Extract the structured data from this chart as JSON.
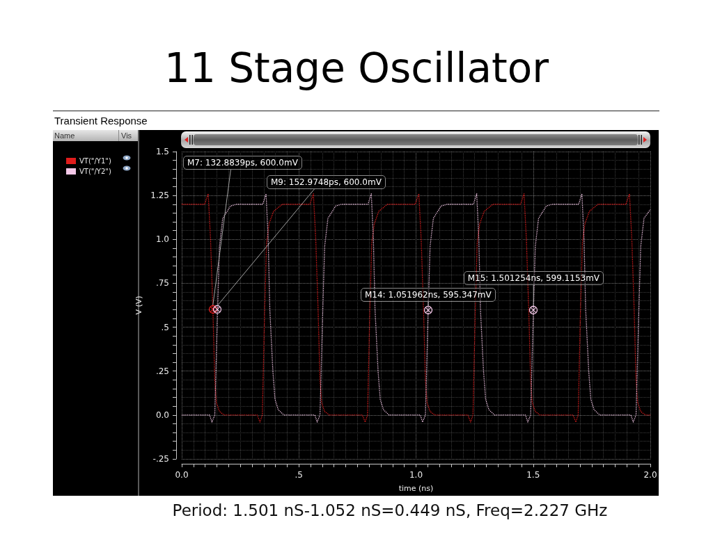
{
  "chart_data": {
    "type": "line",
    "title": "11 Stage Oscillator",
    "subtitle": "Transient Response",
    "xlabel": "time (ns)",
    "ylabel": "V (V)",
    "legend_title": "Name",
    "series": [
      {
        "name": "VT(\"/Y1\")",
        "color": "#e01c1c",
        "x": [
          0,
          0.098,
          0.113,
          0.123,
          0.133,
          0.141,
          0.148,
          0.161,
          0.181,
          0.322,
          0.334,
          0.344,
          0.354,
          0.362,
          0.373,
          0.392,
          0.429,
          0.547,
          0.562,
          0.572,
          0.582,
          0.59,
          0.597,
          0.61,
          0.63,
          0.771,
          0.783,
          0.793,
          0.803,
          0.811,
          0.822,
          0.841,
          0.878,
          0.997,
          1.012,
          1.022,
          1.032,
          1.04,
          1.047,
          1.06,
          1.08,
          1.221,
          1.233,
          1.243,
          1.253,
          1.261,
          1.272,
          1.291,
          1.328,
          1.446,
          1.461,
          1.471,
          1.481,
          1.489,
          1.496,
          1.509,
          1.529,
          1.67,
          1.682,
          1.692,
          1.702,
          1.71,
          1.721,
          1.74,
          1.777,
          1.896,
          1.911,
          1.921,
          1.931,
          1.939,
          1.946,
          1.959,
          1.979,
          2
        ],
        "values": [
          1.2,
          1.2,
          1.26,
          1,
          0.6,
          0.2,
          0.07,
          0.02,
          0,
          0,
          -0.04,
          0,
          0.6,
          0.98,
          1.09,
          1.16,
          1.2,
          1.2,
          1.26,
          1,
          0.6,
          0.2,
          0.07,
          0.02,
          0,
          0,
          -0.04,
          0,
          0.6,
          0.98,
          1.09,
          1.16,
          1.2,
          1.2,
          1.26,
          1,
          0.6,
          0.2,
          0.07,
          0.02,
          0,
          0,
          -0.04,
          0,
          0.6,
          0.98,
          1.09,
          1.16,
          1.2,
          1.2,
          1.26,
          1,
          0.6,
          0.2,
          0.07,
          0.02,
          0,
          0,
          -0.04,
          0,
          0.6,
          0.98,
          1.09,
          1.16,
          1.2,
          1.2,
          1.26,
          1,
          0.6,
          0.2,
          0.07,
          0.02,
          0,
          0
        ]
      },
      {
        "name": "VT(\"/Y2\")",
        "color": "#f4c8e8",
        "x": [
          0,
          0.119,
          0.129,
          0.141,
          0.153,
          0.161,
          0.175,
          0.208,
          0.233,
          0.346,
          0.36,
          0.369,
          0.376,
          0.389,
          0.398,
          0.412,
          0.436,
          0.568,
          0.578,
          0.59,
          0.602,
          0.61,
          0.624,
          0.657,
          0.682,
          0.795,
          0.809,
          0.818,
          0.825,
          0.838,
          0.847,
          0.861,
          0.885,
          1.018,
          1.028,
          1.04,
          1.052,
          1.06,
          1.074,
          1.107,
          1.132,
          1.245,
          1.259,
          1.268,
          1.275,
          1.288,
          1.297,
          1.311,
          1.335,
          1.467,
          1.477,
          1.489,
          1.501,
          1.509,
          1.523,
          1.556,
          1.581,
          1.694,
          1.708,
          1.717,
          1.724,
          1.737,
          1.746,
          1.76,
          1.784,
          1.917,
          1.927,
          1.939,
          1.951,
          1.959,
          1.973,
          2
        ],
        "values": [
          0,
          0,
          -0.04,
          0,
          0.6,
          0.96,
          1.12,
          1.19,
          1.2,
          1.2,
          1.26,
          1,
          0.6,
          0.25,
          0.09,
          0.03,
          0,
          0,
          -0.04,
          0,
          0.6,
          0.96,
          1.12,
          1.19,
          1.2,
          1.2,
          1.26,
          1,
          0.6,
          0.25,
          0.09,
          0.03,
          0,
          0,
          -0.04,
          0,
          0.6,
          0.96,
          1.12,
          1.19,
          1.2,
          1.2,
          1.26,
          1,
          0.6,
          0.25,
          0.09,
          0.03,
          0,
          0,
          -0.04,
          0,
          0.6,
          0.96,
          1.12,
          1.19,
          1.2,
          1.2,
          1.26,
          1,
          0.6,
          0.25,
          0.09,
          0.03,
          0,
          0,
          -0.04,
          0,
          0.6,
          0.96,
          1.12,
          1.17
        ]
      }
    ],
    "xlim": [
      0,
      2
    ],
    "xticks": [
      {
        "value": 0,
        "label": "0.0"
      },
      {
        "value": 0.05,
        "label": null
      },
      {
        "value": 0.1,
        "label": null
      },
      {
        "value": 0.15,
        "label": null
      },
      {
        "value": 0.2,
        "label": null
      },
      {
        "value": 0.25,
        "label": null
      },
      {
        "value": 0.3,
        "label": null
      },
      {
        "value": 0.35,
        "label": null
      },
      {
        "value": 0.4,
        "label": null
      },
      {
        "value": 0.45,
        "label": null
      },
      {
        "value": 0.5,
        "label": ".5"
      },
      {
        "value": 0.55,
        "label": null
      },
      {
        "value": 0.6,
        "label": null
      },
      {
        "value": 0.65,
        "label": null
      },
      {
        "value": 0.7,
        "label": null
      },
      {
        "value": 0.75,
        "label": null
      },
      {
        "value": 0.8,
        "label": null
      },
      {
        "value": 0.85,
        "label": null
      },
      {
        "value": 0.9,
        "label": null
      },
      {
        "value": 0.95,
        "label": null
      },
      {
        "value": 1,
        "label": "1.0"
      },
      {
        "value": 1.05,
        "label": null
      },
      {
        "value": 1.1,
        "label": null
      },
      {
        "value": 1.15,
        "label": null
      },
      {
        "value": 1.2,
        "label": null
      },
      {
        "value": 1.25,
        "label": null
      },
      {
        "value": 1.3,
        "label": null
      },
      {
        "value": 1.35,
        "label": null
      },
      {
        "value": 1.4,
        "label": null
      },
      {
        "value": 1.45,
        "label": null
      },
      1.5,
      {
        "value": 1.55,
        "label": null
      },
      {
        "value": 1.6,
        "label": null
      },
      {
        "value": 1.65,
        "label": null
      },
      {
        "value": 1.7,
        "label": null
      },
      {
        "value": 1.75,
        "label": null
      },
      {
        "value": 1.8,
        "label": null
      },
      {
        "value": 1.85,
        "label": null
      },
      {
        "value": 1.9,
        "label": null
      },
      {
        "value": 1.95,
        "label": null
      },
      {
        "value": 2,
        "label": "2.0"
      }
    ],
    "ylim": [
      -0.25,
      1.5
    ],
    "yticks": [
      {
        "value": -0.25,
        "label": "-.25"
      },
      {
        "value": -0.2,
        "label": null
      },
      {
        "value": -0.15,
        "label": null
      },
      {
        "value": -0.1,
        "label": null
      },
      {
        "value": -0.05,
        "label": null
      },
      {
        "value": 0,
        "label": "0.0"
      },
      {
        "value": 0.05,
        "label": null
      },
      {
        "value": 0.1,
        "label": null
      },
      {
        "value": 0.15,
        "label": null
      },
      {
        "value": 0.2,
        "label": null
      },
      {
        "value": 0.25,
        "label": ".25"
      },
      {
        "value": 0.3,
        "label": null
      },
      {
        "value": 0.35,
        "label": null
      },
      {
        "value": 0.4,
        "label": null
      },
      {
        "value": 0.45,
        "label": null
      },
      {
        "value": 0.5,
        "label": ".5"
      },
      {
        "value": 0.55,
        "label": null
      },
      {
        "value": 0.6,
        "label": null
      },
      {
        "value": 0.65,
        "label": null
      },
      {
        "value": 0.7,
        "label": null
      },
      {
        "value": 0.75,
        "label": ".75"
      },
      {
        "value": 0.8,
        "label": null
      },
      {
        "value": 0.85,
        "label": null
      },
      {
        "value": 0.9,
        "label": null
      },
      {
        "value": 0.95,
        "label": null
      },
      {
        "value": 1,
        "label": "1.0"
      },
      {
        "value": 1.05,
        "label": null
      },
      {
        "value": 1.1,
        "label": null
      },
      {
        "value": 1.15,
        "label": null
      },
      {
        "value": 1.2,
        "label": null
      },
      1.25,
      {
        "value": 1.3,
        "label": null
      },
      {
        "value": 1.35,
        "label": null
      },
      {
        "value": 1.4,
        "label": null
      },
      {
        "value": 1.45,
        "label": null
      },
      1.5
    ],
    "grid": true,
    "legend": "top left",
    "marker": "none",
    "line_style": "dotted",
    "annotations": [
      {
        "text": "M7: 132.8839ps, 600.0mV",
        "x": 0.1328839,
        "y": 0.6
      },
      {
        "text": "M9: 152.9748ps, 600.0mV",
        "x": 0.1529748,
        "y": 0.6
      },
      {
        "text": "M14: 1.051962ns, 595.347mV",
        "x": 1.051962,
        "y": 0.595347
      },
      {
        "text": "M15: 1.501254ns, 599.1153mV",
        "x": 1.501254,
        "y": 0.5991153
      },
      "Period: 1.501 nS-1.052 nS=0.449 nS, Freq=2.227 GHz",
      "Vis"
    ]
  }
}
